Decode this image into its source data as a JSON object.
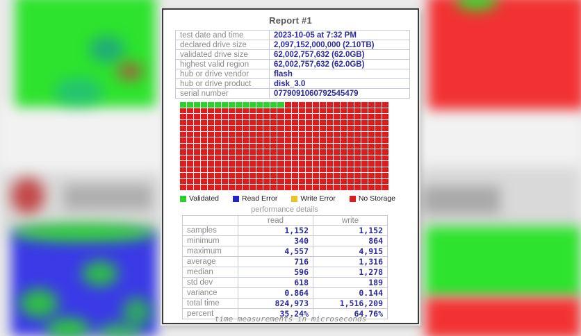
{
  "report": {
    "title": "Report #1",
    "info_rows": [
      {
        "label": "test date and time",
        "value": "2023-10-05  at  7:32 PM"
      },
      {
        "label": "declared drive size",
        "value": "2,097,152,000,000 (2.10TB)"
      },
      {
        "label": "validated drive size",
        "value": "62,002,757,632 (62.0GB)"
      },
      {
        "label": "highest valid region",
        "value": "62,002,757,632 (62.0GB)"
      },
      {
        "label": "hub or drive vendor",
        "value": "flash"
      },
      {
        "label": "hub or drive product",
        "value": "disk_3.0"
      },
      {
        "label": "serial number",
        "value": "0779091060792545479"
      }
    ]
  },
  "block_map": {
    "rows": 15,
    "cols": 30,
    "validated_cells": 15,
    "colors": {
      "validated": "#2bd22b",
      "read_error": "#2323cc",
      "write_error": "#e9c424",
      "no_storage": "#dd1d1d"
    }
  },
  "legend": {
    "items": [
      {
        "name": "validated",
        "label": "Validated",
        "color": "#2bd22b"
      },
      {
        "name": "read-error",
        "label": "Read Error",
        "color": "#2323cc"
      },
      {
        "name": "write-error",
        "label": "Write Error",
        "color": "#e9c424"
      },
      {
        "name": "no-storage",
        "label": "No Storage",
        "color": "#dd1d1d"
      }
    ]
  },
  "performance": {
    "title": "performance details",
    "columns": [
      "read",
      "write"
    ],
    "rows": [
      {
        "label": "samples",
        "read": "1,152",
        "write": "1,152"
      },
      {
        "label": "minimum",
        "read": "340",
        "write": "864"
      },
      {
        "label": "maximum",
        "read": "4,557",
        "write": "4,915"
      },
      {
        "label": "average",
        "read": "716",
        "write": "1,316"
      },
      {
        "label": "median",
        "read": "596",
        "write": "1,278"
      },
      {
        "label": "std dev",
        "read": "618",
        "write": "189"
      },
      {
        "label": "variance",
        "read": "0.864",
        "write": "0.144"
      },
      {
        "label": "total time",
        "read": "824,973",
        "write": "1,516,209"
      },
      {
        "label": "percent",
        "read": "35.24%",
        "write": "64.76%"
      }
    ],
    "footnote": "time measurements in microseconds"
  },
  "background_colors": {
    "green": "#2de32d",
    "red": "#f23232",
    "blue": "#3a3ae6",
    "gray_band": "#d9d9d9"
  }
}
